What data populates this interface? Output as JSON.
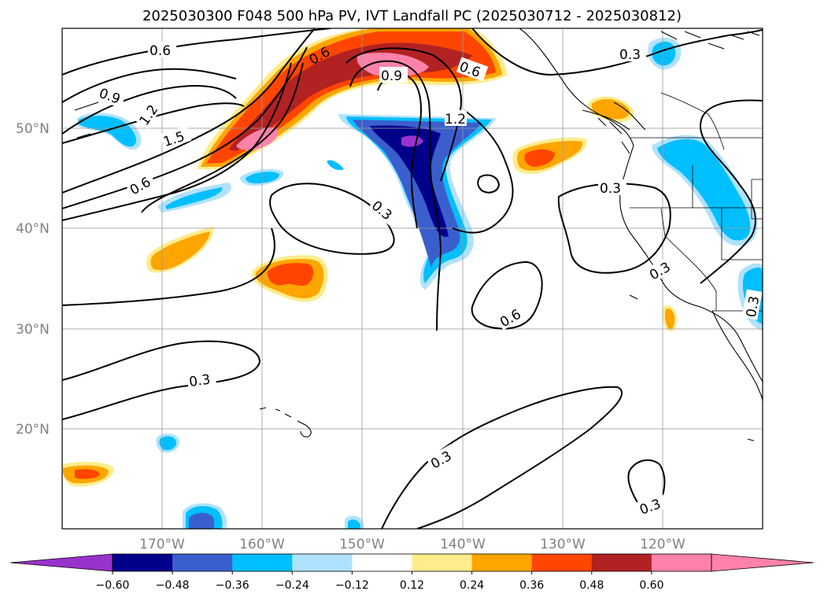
{
  "title": "2025030300 F048 500 hPa PV, IVT Landfall PC (2025030712 - 2025030812)",
  "map": {
    "lon_range": [
      -180,
      -110
    ],
    "lat_range": [
      10,
      60
    ],
    "lon_ticks": [
      "170°W",
      "160°W",
      "150°W",
      "140°W",
      "130°W",
      "120°W"
    ],
    "lat_ticks": [
      "50°N",
      "40°N",
      "30°N",
      "20°N"
    ],
    "grid": true
  },
  "contours": {
    "labels": [
      "0.6",
      "0.9",
      "1.2",
      "1.5",
      "0.6",
      "0.6",
      "0.9",
      "0.6",
      "1.2",
      "0.3",
      "0.3",
      "0.3",
      "0.3",
      "0.6",
      "0.3",
      "0.3",
      "0.3",
      "0.3"
    ]
  },
  "colorbar": {
    "colors": [
      "#9932cc",
      "#00008b",
      "#3a5fcd",
      "#00bfff",
      "#b0e2ff",
      "#ffffff",
      "#ffec8b",
      "#ffa500",
      "#ff4500",
      "#b22222",
      "#ff82ab",
      "#ff82ab"
    ],
    "tick_labels": [
      "−0.60",
      "−0.48",
      "−0.36",
      "−0.24",
      "−0.12",
      "0.12",
      "0.24",
      "0.36",
      "0.48",
      "0.60"
    ]
  }
}
